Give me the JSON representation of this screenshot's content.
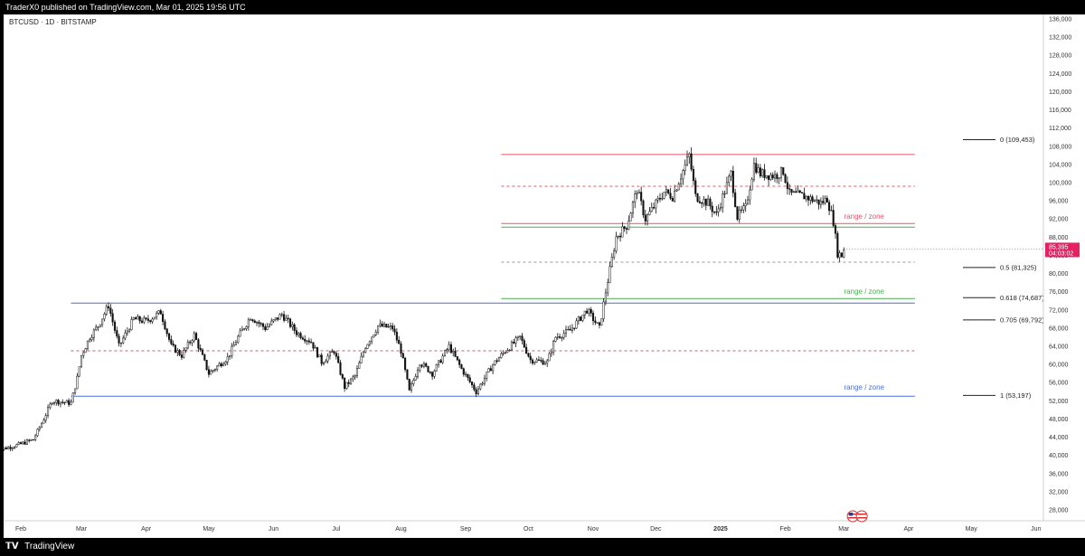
{
  "header": {
    "publisher": "TraderX0 published on TradingView.com, Mar 01, 2025 19:56 UTC"
  },
  "footer": {
    "brand": "TradingView",
    "logo_icon": "tradingview-logo-icon"
  },
  "chart_data": {
    "type": "candlestick",
    "symbol_label": "BTCUSD · 1D · BITSTAMP",
    "y_ticks": [
      28000,
      32000,
      36000,
      40000,
      44000,
      48000,
      52000,
      56000,
      60000,
      64000,
      68000,
      72000,
      76000,
      80000,
      84000,
      88000,
      92000,
      96000,
      100000,
      104000,
      108000,
      112000,
      116000,
      120000,
      124000,
      128000,
      132000,
      136000
    ],
    "y_tick_labels": [
      "28,000",
      "32,000",
      "36,000",
      "40,000",
      "44,000",
      "48,000",
      "52,000",
      "56,000",
      "60,000",
      "64,000",
      "68,000",
      "72,000",
      "76,000",
      "80,000",
      "84,000",
      "88,000",
      "92,000",
      "96,000",
      "100,000",
      "104,000",
      "108,000",
      "112,000",
      "116,000",
      "120,000",
      "124,000",
      "128,000",
      "132,000",
      "136,000"
    ],
    "x_labels": [
      {
        "label": "Feb",
        "date": "2024-02-01"
      },
      {
        "label": "Mar",
        "date": "2024-03-01"
      },
      {
        "label": "Apr",
        "date": "2024-04-01"
      },
      {
        "label": "May",
        "date": "2024-05-01"
      },
      {
        "label": "Jun",
        "date": "2024-06-01"
      },
      {
        "label": "Jul",
        "date": "2024-07-01"
      },
      {
        "label": "Aug",
        "date": "2024-08-01"
      },
      {
        "label": "Sep",
        "date": "2024-09-01"
      },
      {
        "label": "Oct",
        "date": "2024-10-01"
      },
      {
        "label": "Nov",
        "date": "2024-11-01"
      },
      {
        "label": "Dec",
        "date": "2024-12-01"
      },
      {
        "label": "2025",
        "date": "2025-01-01",
        "bold": true
      },
      {
        "label": "Feb",
        "date": "2025-02-01"
      },
      {
        "label": "Mar",
        "date": "2025-03-01"
      },
      {
        "label": "Apr",
        "date": "2025-04-01"
      },
      {
        "label": "May",
        "date": "2025-05-01"
      },
      {
        "label": "Jun",
        "date": "2025-06-01"
      }
    ],
    "price_path": [
      [
        "2024-01-20",
        41000
      ],
      [
        "2024-02-01",
        42500
      ],
      [
        "2024-02-07",
        43500
      ],
      [
        "2024-02-12",
        48000
      ],
      [
        "2024-02-16",
        52000
      ],
      [
        "2024-02-25",
        51500
      ],
      [
        "2024-02-28",
        57000
      ],
      [
        "2024-03-01",
        62000
      ],
      [
        "2024-03-05",
        66000
      ],
      [
        "2024-03-09",
        68500
      ],
      [
        "2024-03-14",
        73000
      ],
      [
        "2024-03-19",
        64000
      ],
      [
        "2024-03-26",
        70000
      ],
      [
        "2024-04-01",
        69500
      ],
      [
        "2024-04-08",
        71500
      ],
      [
        "2024-04-13",
        64000
      ],
      [
        "2024-04-18",
        62000
      ],
      [
        "2024-04-24",
        66500
      ],
      [
        "2024-05-01",
        58000
      ],
      [
        "2024-05-10",
        61500
      ],
      [
        "2024-05-15",
        66000
      ],
      [
        "2024-05-21",
        70500
      ],
      [
        "2024-05-28",
        68000
      ],
      [
        "2024-06-05",
        71000
      ],
      [
        "2024-06-12",
        67000
      ],
      [
        "2024-06-19",
        65000
      ],
      [
        "2024-06-24",
        60500
      ],
      [
        "2024-06-30",
        63000
      ],
      [
        "2024-07-05",
        55000
      ],
      [
        "2024-07-10",
        57500
      ],
      [
        "2024-07-15",
        64000
      ],
      [
        "2024-07-21",
        68500
      ],
      [
        "2024-07-28",
        68000
      ],
      [
        "2024-08-01",
        63000
      ],
      [
        "2024-08-05",
        54000
      ],
      [
        "2024-08-10",
        60500
      ],
      [
        "2024-08-16",
        58000
      ],
      [
        "2024-08-24",
        64000
      ],
      [
        "2024-08-30",
        59000
      ],
      [
        "2024-09-06",
        54000
      ],
      [
        "2024-09-14",
        60000
      ],
      [
        "2024-09-20",
        63000
      ],
      [
        "2024-09-27",
        66000
      ],
      [
        "2024-10-02",
        61000
      ],
      [
        "2024-10-10",
        60500
      ],
      [
        "2024-10-14",
        66000
      ],
      [
        "2024-10-21",
        67500
      ],
      [
        "2024-10-29",
        72000
      ],
      [
        "2024-11-04",
        68000
      ],
      [
        "2024-11-07",
        76000
      ],
      [
        "2024-11-12",
        88000
      ],
      [
        "2024-11-17",
        90500
      ],
      [
        "2024-11-22",
        98500
      ],
      [
        "2024-11-26",
        92000
      ],
      [
        "2024-12-05",
        98000
      ],
      [
        "2024-12-09",
        97000
      ],
      [
        "2024-12-17",
        106000
      ],
      [
        "2024-12-20",
        97000
      ],
      [
        "2024-12-26",
        95500
      ],
      [
        "2024-12-30",
        93000
      ],
      [
        "2025-01-06",
        102000
      ],
      [
        "2025-01-09",
        92500
      ],
      [
        "2025-01-13",
        94500
      ],
      [
        "2025-01-17",
        104000
      ],
      [
        "2025-01-20",
        102000
      ],
      [
        "2025-01-27",
        101500
      ],
      [
        "2025-01-31",
        102500
      ],
      [
        "2025-02-03",
        97500
      ],
      [
        "2025-02-10",
        97000
      ],
      [
        "2025-02-18",
        95500
      ],
      [
        "2025-02-21",
        96500
      ],
      [
        "2025-02-24",
        91500
      ],
      [
        "2025-02-26",
        84500
      ],
      [
        "2025-02-28",
        84000
      ],
      [
        "2025-03-01",
        85395
      ]
    ],
    "last_price": {
      "label": "85,395",
      "countdown": "04:03:02",
      "value": 85395
    },
    "horizontal_lines": [
      {
        "name": "red-resistance",
        "value": 106200,
        "from": "2024-09-18",
        "to": "2025-04-04",
        "color": "#e8556d",
        "dashed": false
      },
      {
        "name": "red-dashed",
        "value": 99200,
        "from": "2024-09-18",
        "to": "2025-04-04",
        "color": "#e8556d",
        "dashed": true
      },
      {
        "name": "red-zone-line",
        "value": 91000,
        "from": "2024-09-18",
        "to": "2025-04-04",
        "color": "#e8556d",
        "dashed": false
      },
      {
        "name": "green-upper",
        "value": 90200,
        "from": "2024-09-18",
        "to": "2025-04-04",
        "color": "#4caf50",
        "dashed": false
      },
      {
        "name": "grey-dashed-upper",
        "value": 82500,
        "from": "2024-09-18",
        "to": "2025-04-04",
        "color": "#999999",
        "dashed": true
      },
      {
        "name": "green-lower",
        "value": 74500,
        "from": "2024-09-18",
        "to": "2025-04-04",
        "color": "#4caf50",
        "dashed": false
      },
      {
        "name": "blue-upper",
        "value": 73500,
        "from": "2024-02-25",
        "to": "2025-04-04",
        "color": "#4a6fdc",
        "dashed": false
      },
      {
        "name": "grey-dashed-lower",
        "value": 63000,
        "from": "2024-02-25",
        "to": "2025-04-04",
        "color": "#c06070",
        "dashed": true
      },
      {
        "name": "blue-lower",
        "value": 53000,
        "from": "2024-02-25",
        "to": "2025-04-04",
        "color": "#4a6fdc",
        "dashed": false
      }
    ],
    "zone_labels": [
      {
        "text": "range / zone",
        "value": 92000,
        "color": "#e8556d"
      },
      {
        "text": "range / zone",
        "value": 75500,
        "color": "#4caf50"
      },
      {
        "text": "range / zone",
        "value": 54500,
        "color": "#4a6fdc"
      }
    ],
    "fib_levels": [
      {
        "label": "0 (109,453)",
        "value": 109453
      },
      {
        "label": "0.5 (81,325)",
        "value": 81325
      },
      {
        "label": "0.618 (74,687)",
        "value": 74687
      },
      {
        "label": "0.705 (69,792)",
        "value": 69792
      },
      {
        "label": "1 (53,197)",
        "value": 53197
      }
    ],
    "event_marker": {
      "date": "2025-03-07",
      "icon": "us-flag-calendar-icon"
    }
  }
}
